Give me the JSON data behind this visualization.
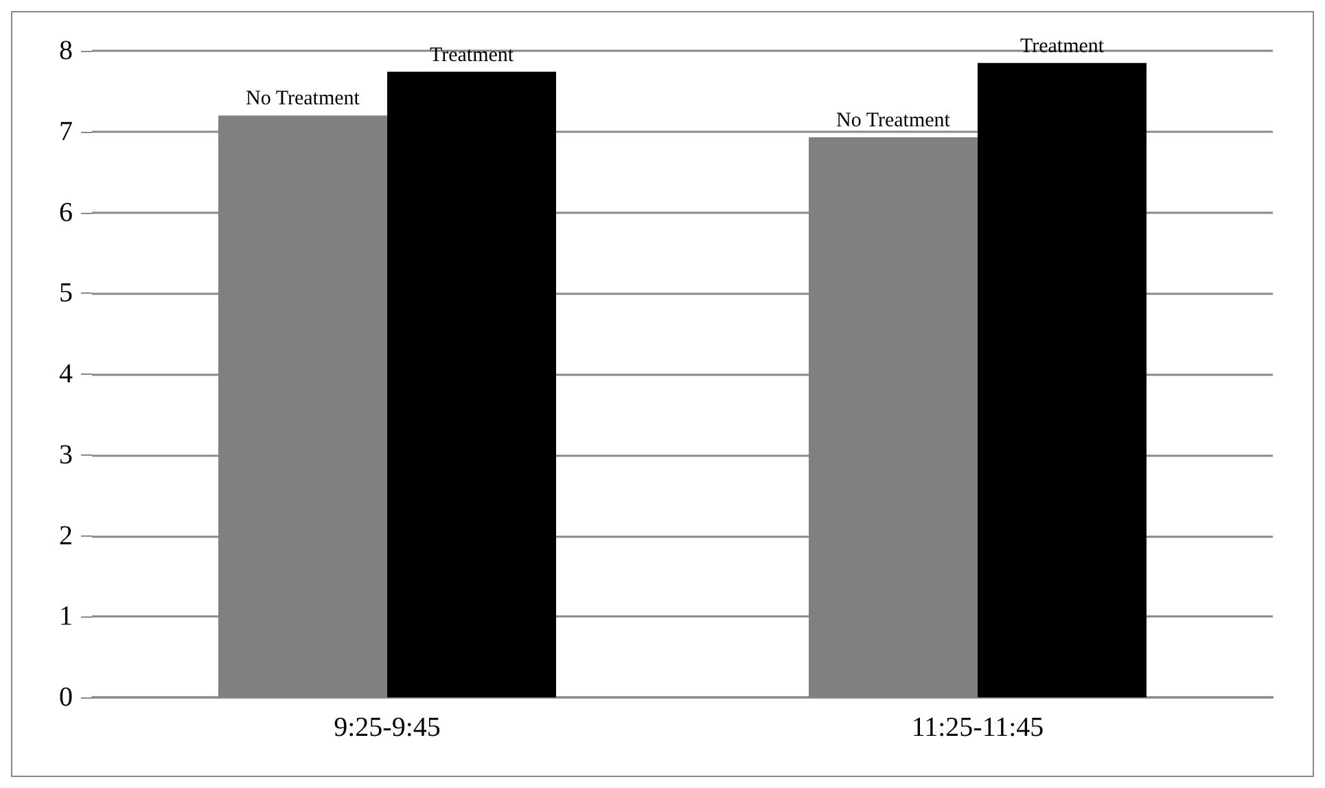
{
  "chart_data": {
    "type": "bar",
    "categories": [
      "9:25-9:45",
      "11:25-11:45"
    ],
    "series": [
      {
        "name": "No Treatment",
        "color": "#808080",
        "values": [
          7.2,
          6.93
        ]
      },
      {
        "name": "Treatment",
        "color": "#000000",
        "values": [
          7.74,
          7.85
        ]
      }
    ],
    "ylim": [
      0,
      8
    ],
    "yticks": [
      0,
      1,
      2,
      3,
      4,
      5,
      6,
      7,
      8
    ],
    "grid": "y",
    "legend": false
  }
}
